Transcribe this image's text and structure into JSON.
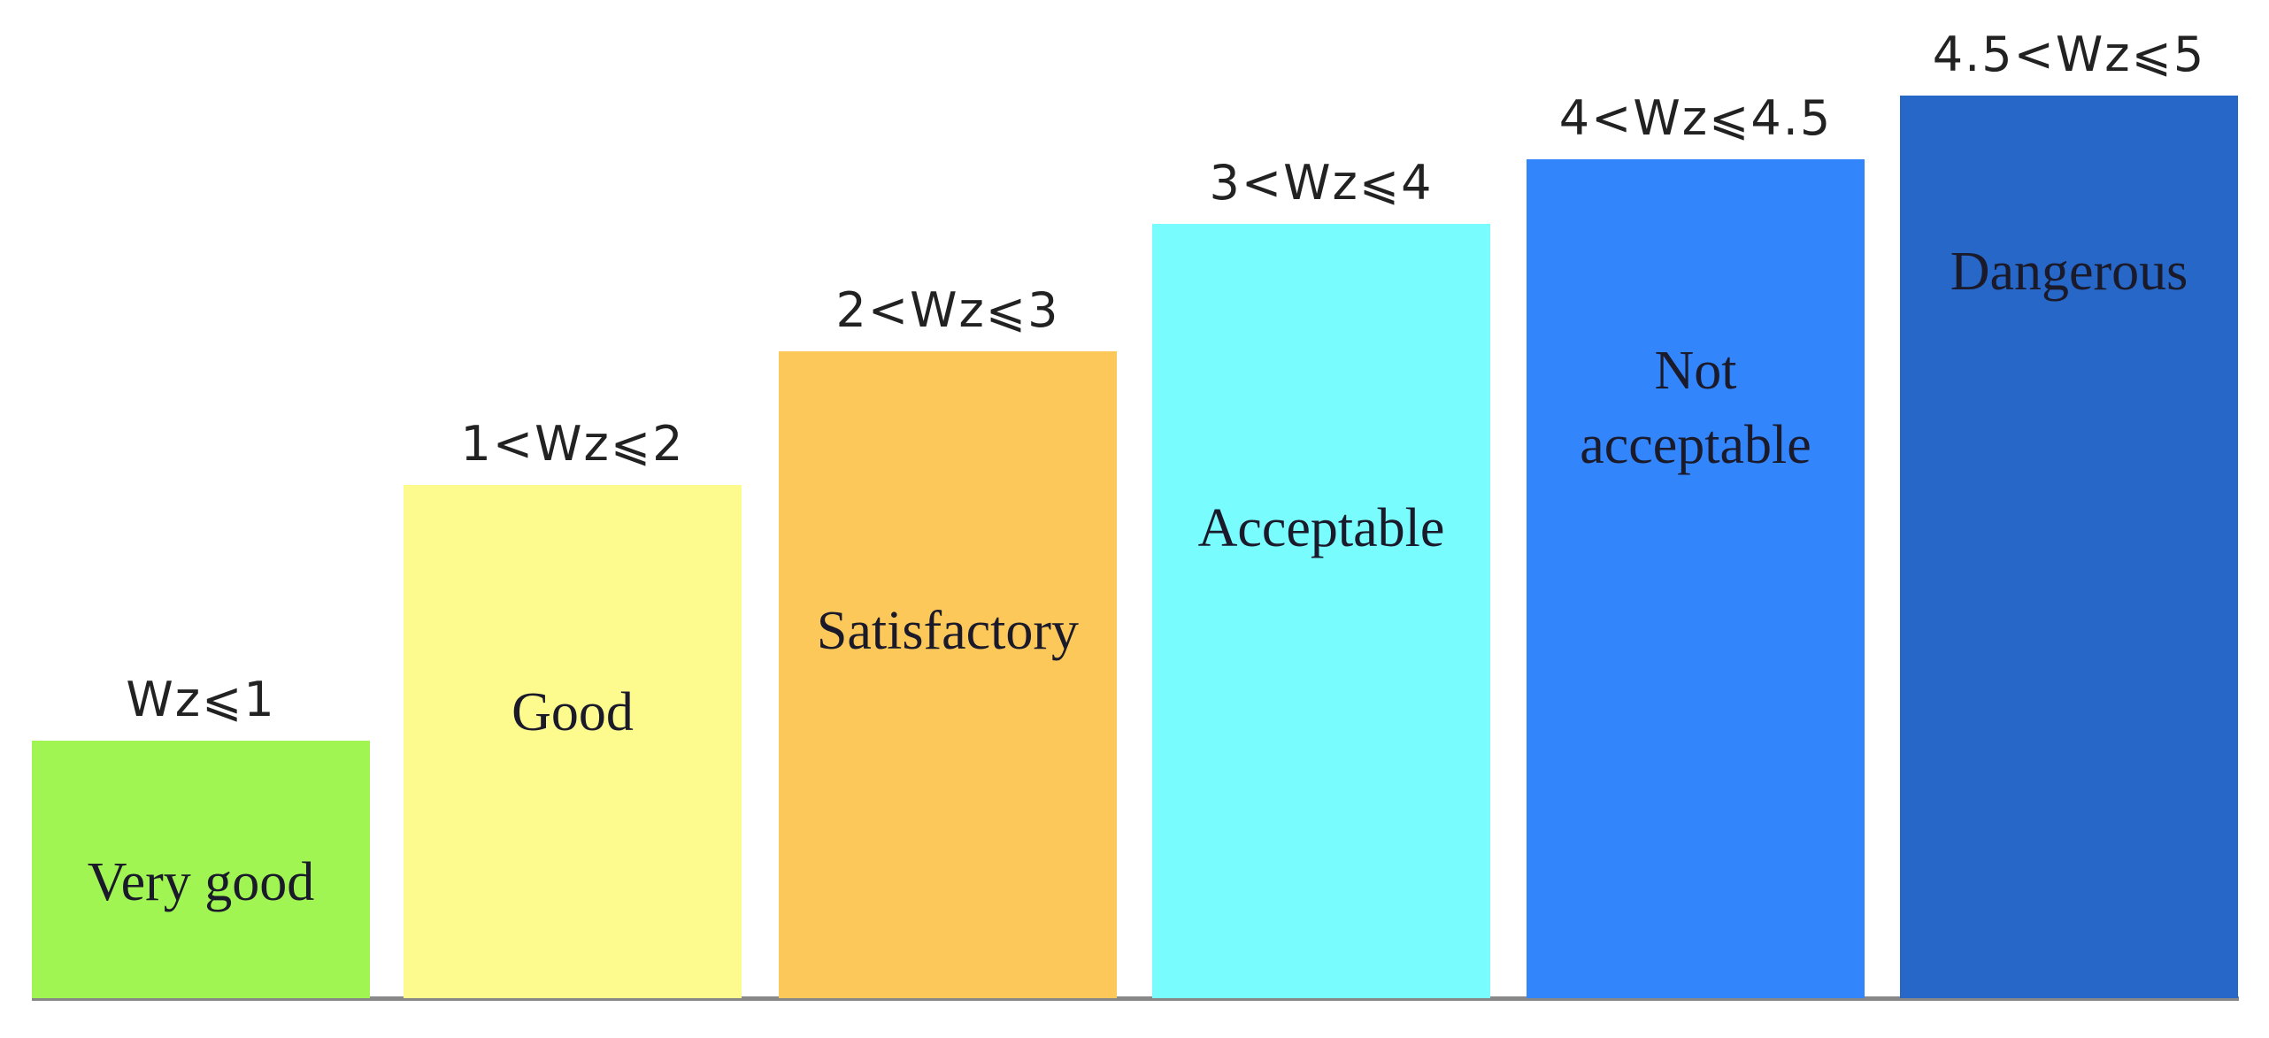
{
  "levels": [
    {
      "range": "Wz⩽1",
      "label": "Very good",
      "color": "#a0f552"
    },
    {
      "range": "1<Wz⩽2",
      "label": "Good",
      "color": "#fdfb8e"
    },
    {
      "range": "2<Wz⩽3",
      "label": "Satisfactory",
      "color": "#fcc85a"
    },
    {
      "range": "3<Wz⩽4",
      "label": "Acceptable",
      "color": "#78fcfd"
    },
    {
      "range": "4<Wz⩽4.5",
      "label": "Not acceptable",
      "color": "#3385fc"
    },
    {
      "range": "4.5<Wz⩽5",
      "label": "Dangerous",
      "color": "#2667c8"
    }
  ]
}
